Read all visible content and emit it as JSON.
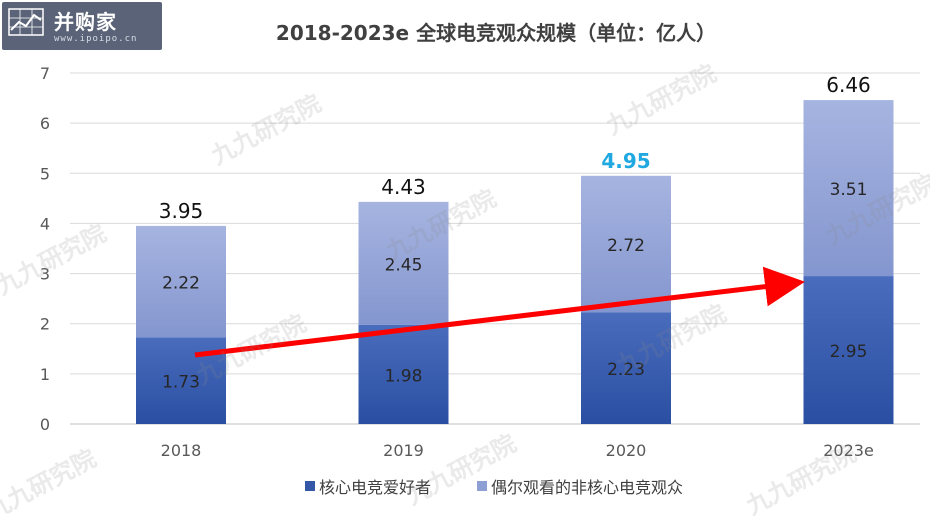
{
  "logo": {
    "brand": "并购家",
    "site": "www.ipoipo.cn"
  },
  "watermark": "九九研究院",
  "chart_data": {
    "type": "bar",
    "stacked": true,
    "title": "2018-2023e 全球电竞观众规模（单位：亿人）",
    "categories": [
      "2018",
      "2019",
      "2020",
      "2023e"
    ],
    "series": [
      {
        "name": "核心电竞爱好者",
        "values": [
          1.73,
          1.98,
          2.23,
          2.95
        ],
        "color": "#3457a8"
      },
      {
        "name": "偶尔观看的非核心电竞观众",
        "values": [
          2.22,
          2.45,
          2.72,
          3.51
        ],
        "color": "#8e9fd3"
      }
    ],
    "totals": [
      3.95,
      4.43,
      4.95,
      6.46
    ],
    "total_label_colors": [
      "#111111",
      "#111111",
      "#20a8e0",
      "#111111"
    ],
    "y_ticks": [
      "0",
      "1",
      "2",
      "3",
      "4",
      "5",
      "6",
      "7"
    ],
    "ylim": [
      0,
      7
    ],
    "grid": true,
    "legend": "bottom",
    "annotation": "red trend arrow from 2018 to 2023e"
  }
}
